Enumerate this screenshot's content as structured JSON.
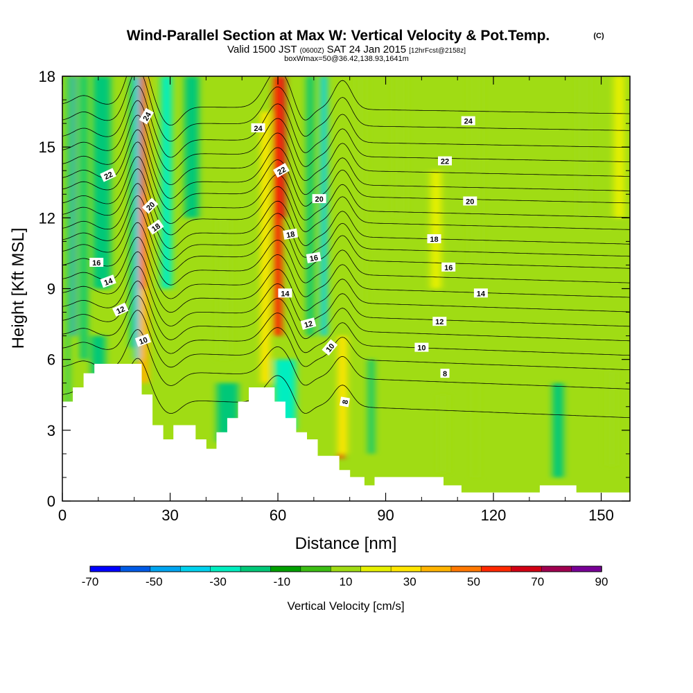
{
  "header": {
    "title": "Wind-Parallel Section at Max W: Vertical Velocity & Pot.Temp.",
    "title_mark": "(C)",
    "valid_prefix": "Valid 1500 JST",
    "valid_z": "(0600Z)",
    "valid_date": "SAT 24 Jan 2015",
    "forecast": "[12hrFcst@2158z]",
    "box_info": "boxWmax=50@36.42,138.93,1641m"
  },
  "chart_data": {
    "type": "heatmap",
    "title": "Wind-Parallel Section at Max W: Vertical Velocity & Pot.Temp.",
    "xlabel": "Distance [nm]",
    "ylabel": "Height [Kft MSL]",
    "xlim": [
      0,
      158
    ],
    "ylim": [
      0,
      18
    ],
    "x_ticks": [
      0,
      30,
      60,
      90,
      120,
      150
    ],
    "y_ticks": [
      0,
      3,
      6,
      9,
      12,
      15,
      18
    ],
    "colorbar": {
      "title": "Vertical Velocity [cm/s]",
      "levels": [
        -70,
        -60,
        -50,
        -40,
        -30,
        -20,
        -10,
        0,
        10,
        20,
        30,
        40,
        50,
        60,
        70,
        80,
        90
      ],
      "tick_labels": [
        "-70",
        "-50",
        "-30",
        "-10",
        "10",
        "30",
        "50",
        "70",
        "90"
      ],
      "colors": [
        "#0000ff",
        "#005ae6",
        "#00a5f0",
        "#00d2ee",
        "#00eec0",
        "#00c878",
        "#00a000",
        "#3cbe14",
        "#a0dc14",
        "#e6f000",
        "#ffe600",
        "#ffb400",
        "#ff7800",
        "#ff2800",
        "#d20014",
        "#a00050",
        "#780096"
      ]
    },
    "vertical_velocity_columns": [
      {
        "x": 1.5,
        "w": 0.9,
        "ybot": 3.6,
        "ytop": 18,
        "v": -20
      },
      {
        "x": 3.2,
        "w": 1.1,
        "ybot": 7.0,
        "ytop": 18,
        "v": -45
      },
      {
        "x": 6.0,
        "w": 2.0,
        "ybot": 6.0,
        "ytop": 18,
        "v": -12
      },
      {
        "x": 11.0,
        "w": 5.0,
        "ybot": 9.0,
        "ytop": 18,
        "v": -12
      },
      {
        "x": 19.6,
        "w": 1.5,
        "ybot": 6.5,
        "ytop": 18,
        "v": -15
      },
      {
        "x": 20.8,
        "w": 1.4,
        "ybot": 6.0,
        "ytop": 18,
        "v": -40
      },
      {
        "x": 22.7,
        "w": 2.5,
        "ybot": 5.0,
        "ytop": 18,
        "v": 40
      },
      {
        "x": 22.4,
        "w": 1.3,
        "ybot": 9.0,
        "ytop": 18,
        "v": 65
      },
      {
        "x": 22.3,
        "w": 0.8,
        "ybot": 13.0,
        "ytop": 18,
        "v": 85
      },
      {
        "x": 29.0,
        "w": 3.0,
        "ybot": 9.0,
        "ytop": 18,
        "v": -25
      },
      {
        "x": 36.0,
        "w": 4.0,
        "ybot": 12.0,
        "ytop": 18,
        "v": -12
      },
      {
        "x": 45.0,
        "w": 4.0,
        "ybot": 6.0,
        "ytop": 12.0,
        "v": 14
      },
      {
        "x": 56.5,
        "w": 2.5,
        "ybot": 5.0,
        "ytop": 16.5,
        "v": 30
      },
      {
        "x": 60.0,
        "w": 2.4,
        "ybot": 7.0,
        "ytop": 18,
        "v": 62
      },
      {
        "x": 61.5,
        "w": 1.2,
        "ybot": 12.0,
        "ytop": 18,
        "v": 75
      },
      {
        "x": 72.8,
        "w": 1.8,
        "ybot": 7.0,
        "ytop": 18,
        "v": -38
      },
      {
        "x": 69.0,
        "w": 2.0,
        "ybot": 7.0,
        "ytop": 18,
        "v": -12
      },
      {
        "x": 77.6,
        "w": 1.6,
        "ybot": 1.8,
        "ytop": 5.5,
        "v": 62
      },
      {
        "x": 78.0,
        "w": 2.6,
        "ybot": 2.0,
        "ytop": 7.0,
        "v": 32
      },
      {
        "x": 83.0,
        "w": 3.0,
        "ybot": 8.0,
        "ytop": 18,
        "v": 16
      },
      {
        "x": 94.0,
        "w": 4.0,
        "ybot": 12.0,
        "ytop": 18,
        "v": 16
      },
      {
        "x": 104.0,
        "w": 3.0,
        "ybot": 9.0,
        "ytop": 14.0,
        "v": 22
      },
      {
        "x": 115.0,
        "w": 4.0,
        "ybot": 10.0,
        "ytop": 18,
        "v": 14
      },
      {
        "x": 145.0,
        "w": 4.0,
        "ybot": 12.0,
        "ytop": 18,
        "v": 16
      },
      {
        "x": 155.0,
        "w": 3.0,
        "ybot": 12.0,
        "ytop": 18,
        "v": 20
      },
      {
        "x": 86.0,
        "w": 1.6,
        "ybot": 2.0,
        "ytop": 6.0,
        "v": -15
      },
      {
        "x": 115.0,
        "w": 2.0,
        "ybot": 1.0,
        "ytop": 5.0,
        "v": 18
      },
      {
        "x": 106.0,
        "w": 3.0,
        "ybot": 1.2,
        "ytop": 4.5,
        "v": 16
      },
      {
        "x": 138.0,
        "w": 3.0,
        "ybot": 1.0,
        "ytop": 5.0,
        "v": -12
      },
      {
        "x": 153.0,
        "w": 3.0,
        "ybot": 1.5,
        "ytop": 5.5,
        "v": 16
      },
      {
        "x": 10.0,
        "w": 4.0,
        "ybot": 4.0,
        "ytop": 7.0,
        "v": -12
      },
      {
        "x": 46.0,
        "w": 6.0,
        "ybot": 2.5,
        "ytop": 5.0,
        "v": -12
      },
      {
        "x": 62.0,
        "w": 6.0,
        "ybot": 3.0,
        "ytop": 6.0,
        "v": -22
      }
    ],
    "terrain": [
      [
        0.0,
        4.2
      ],
      [
        3.0,
        4.2
      ],
      [
        3.0,
        4.8
      ],
      [
        6.0,
        4.8
      ],
      [
        6.0,
        5.4
      ],
      [
        9.0,
        5.4
      ],
      [
        9.0,
        5.8
      ],
      [
        12.0,
        5.8
      ],
      [
        22.0,
        5.8
      ],
      [
        22.0,
        4.5
      ],
      [
        25.0,
        4.5
      ],
      [
        25.0,
        3.2
      ],
      [
        28.0,
        3.2
      ],
      [
        28.0,
        2.6
      ],
      [
        31.0,
        2.6
      ],
      [
        31.0,
        3.2
      ],
      [
        37.0,
        3.2
      ],
      [
        37.0,
        2.6
      ],
      [
        40.0,
        2.6
      ],
      [
        40.0,
        2.2
      ],
      [
        43.0,
        2.2
      ],
      [
        43.0,
        2.9
      ],
      [
        46.0,
        2.9
      ],
      [
        46.0,
        3.5
      ],
      [
        49.0,
        3.5
      ],
      [
        49.0,
        4.2
      ],
      [
        52.0,
        4.2
      ],
      [
        52.0,
        4.8
      ],
      [
        59.0,
        4.8
      ],
      [
        59.0,
        4.2
      ],
      [
        62.0,
        4.2
      ],
      [
        62.0,
        3.5
      ],
      [
        65.0,
        3.5
      ],
      [
        65.0,
        2.9
      ],
      [
        68.0,
        2.9
      ],
      [
        68.0,
        2.6
      ],
      [
        71.0,
        2.6
      ],
      [
        71.0,
        1.9
      ],
      [
        77.0,
        1.9
      ],
      [
        77.0,
        1.3
      ],
      [
        80.0,
        1.3
      ],
      [
        80.0,
        1.0
      ],
      [
        84.0,
        1.0
      ],
      [
        84.0,
        0.65
      ],
      [
        87.0,
        0.65
      ],
      [
        87.0,
        1.0
      ],
      [
        106.0,
        1.0
      ],
      [
        106.0,
        0.65
      ],
      [
        111.0,
        0.65
      ],
      [
        111.0,
        0.35
      ],
      [
        133.0,
        0.35
      ],
      [
        133.0,
        0.65
      ],
      [
        143.0,
        0.65
      ],
      [
        143.0,
        0.35
      ],
      [
        158.0,
        0.35
      ]
    ],
    "contour_levels": [
      6,
      7,
      8,
      9,
      10,
      11,
      12,
      13,
      14,
      15,
      16,
      17,
      18,
      19,
      20,
      21,
      22,
      23,
      24,
      25,
      26
    ],
    "contour_heights_at_x80": [
      4.0,
      5.2,
      6.0,
      6.6,
      7.2,
      7.8,
      8.4,
      9.0,
      9.6,
      10.2,
      10.7,
      11.2,
      11.8,
      12.3,
      12.9,
      13.4,
      14.0,
      14.6,
      15.2,
      15.9,
      16.6
    ],
    "contour_labels": [
      {
        "text": "24",
        "x": 23.5,
        "y": 16.3,
        "rot": -60
      },
      {
        "text": "22",
        "x": 12.8,
        "y": 13.8,
        "rot": -25
      },
      {
        "text": "20",
        "x": 24.5,
        "y": 12.5,
        "rot": -45
      },
      {
        "text": "18",
        "x": 26.0,
        "y": 11.6,
        "rot": -35
      },
      {
        "text": "16",
        "x": 9.5,
        "y": 10.1,
        "rot": 0
      },
      {
        "text": "14",
        "x": 12.8,
        "y": 9.3,
        "rot": -20
      },
      {
        "text": "12",
        "x": 16.2,
        "y": 8.1,
        "rot": -25
      },
      {
        "text": "10",
        "x": 22.5,
        "y": 6.8,
        "rot": -20
      },
      {
        "text": "24",
        "x": 54.5,
        "y": 15.8,
        "rot": 0
      },
      {
        "text": "22",
        "x": 61.0,
        "y": 14.0,
        "rot": -30
      },
      {
        "text": "20",
        "x": 71.5,
        "y": 12.8,
        "rot": 0
      },
      {
        "text": "18",
        "x": 63.5,
        "y": 11.3,
        "rot": -10
      },
      {
        "text": "16",
        "x": 70.0,
        "y": 10.3,
        "rot": -10
      },
      {
        "text": "14",
        "x": 62.0,
        "y": 8.8,
        "rot": 0
      },
      {
        "text": "12",
        "x": 68.5,
        "y": 7.5,
        "rot": -15
      },
      {
        "text": "10",
        "x": 74.5,
        "y": 6.5,
        "rot": -50
      },
      {
        "text": "8",
        "x": 78.7,
        "y": 4.2,
        "rot": -80
      },
      {
        "text": "24",
        "x": 113.0,
        "y": 16.1,
        "rot": 0
      },
      {
        "text": "22",
        "x": 106.5,
        "y": 14.4,
        "rot": 0
      },
      {
        "text": "20",
        "x": 113.5,
        "y": 12.7,
        "rot": 0
      },
      {
        "text": "18",
        "x": 103.5,
        "y": 11.1,
        "rot": 0
      },
      {
        "text": "16",
        "x": 107.5,
        "y": 9.9,
        "rot": 0
      },
      {
        "text": "14",
        "x": 116.5,
        "y": 8.8,
        "rot": 0
      },
      {
        "text": "12",
        "x": 105.0,
        "y": 7.6,
        "rot": 0
      },
      {
        "text": "10",
        "x": 100.0,
        "y": 6.5,
        "rot": 0
      },
      {
        "text": "8",
        "x": 106.5,
        "y": 5.4,
        "rot": 0
      }
    ]
  }
}
